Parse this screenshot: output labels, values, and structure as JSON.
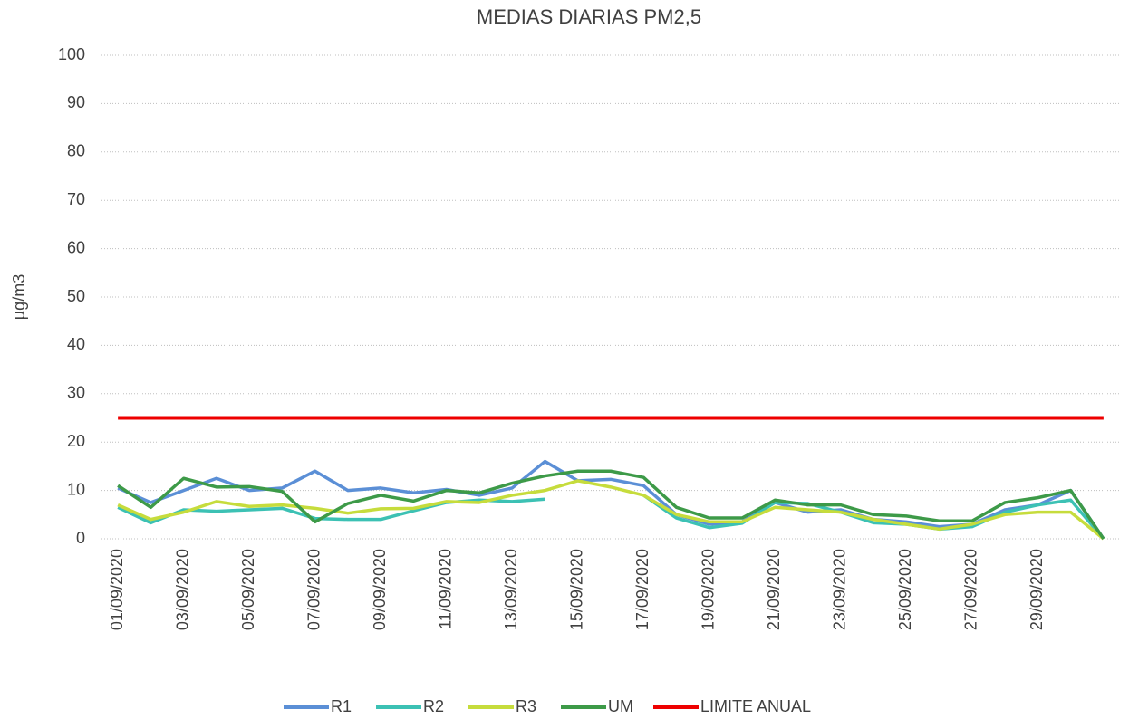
{
  "chart_data": {
    "type": "line",
    "title": "MEDIAS DIARIAS PM2,5",
    "y_label": "µg/m3",
    "categories": [
      "01/09/2020",
      null,
      "03/09/2020",
      null,
      "05/09/2020",
      null,
      "07/09/2020",
      null,
      "09/09/2020",
      null,
      "11/09/2020",
      null,
      "13/09/2020",
      null,
      "15/09/2020",
      null,
      "17/09/2020",
      null,
      "19/09/2020",
      null,
      "21/09/2020",
      null,
      "23/09/2020",
      null,
      "25/09/2020",
      null,
      "27/09/2020",
      null,
      "29/09/2020",
      null,
      null
    ],
    "series": [
      {
        "name": "R1",
        "color": "#5b8fd6",
        "values": [
          10.5,
          7.5,
          10,
          12.5,
          10,
          10.5,
          14,
          10,
          10.5,
          9.5,
          10.2,
          9,
          10.5,
          16,
          12,
          12.3,
          11,
          5,
          3,
          3.5,
          7.5,
          5.5,
          6,
          4,
          3.5,
          2.5,
          3,
          6,
          7,
          10,
          0
        ]
      },
      {
        "name": "R2",
        "color": "#3cc1b4",
        "values": [
          6.5,
          3.3,
          6,
          5.7,
          6,
          6.3,
          4.2,
          4,
          4,
          5.8,
          7.5,
          8,
          7.7,
          8.2,
          null,
          null,
          9,
          4.3,
          2.3,
          3.2,
          7.5,
          7.3,
          5.5,
          3.3,
          3,
          2,
          2.5,
          5.5,
          7,
          8,
          0
        ]
      },
      {
        "name": "R3",
        "color": "#c6dc3c",
        "values": [
          7,
          4,
          5.5,
          7.7,
          6.7,
          7,
          6.3,
          5.3,
          6.2,
          6.3,
          7.7,
          7.5,
          9,
          10,
          12,
          10.7,
          9,
          5,
          3.5,
          3.5,
          6.5,
          6,
          5.5,
          4,
          3,
          2,
          3,
          5,
          5.5,
          5.5,
          0
        ]
      },
      {
        "name": "UM",
        "color": "#3d9a48",
        "values": [
          11,
          6.5,
          12.5,
          10.7,
          10.8,
          9.8,
          3.5,
          7.3,
          9,
          7.8,
          10,
          9.5,
          11.5,
          13,
          14,
          14,
          12.7,
          6.5,
          4.3,
          4.3,
          8,
          7,
          7,
          5,
          4.7,
          3.7,
          3.7,
          7.5,
          8.5,
          10,
          0
        ]
      },
      {
        "name": "LIMITE ANUAL",
        "color": "#ee0000",
        "values": [
          25,
          25,
          25,
          25,
          25,
          25,
          25,
          25,
          25,
          25,
          25,
          25,
          25,
          25,
          25,
          25,
          25,
          25,
          25,
          25,
          25,
          25,
          25,
          25,
          25,
          25,
          25,
          25,
          25,
          25,
          25
        ]
      }
    ],
    "ylim": [
      0,
      100
    ],
    "yticks": [
      0,
      10,
      20,
      30,
      40,
      50,
      60,
      70,
      80,
      90,
      100
    ],
    "grid": true,
    "legend": "bottom"
  }
}
